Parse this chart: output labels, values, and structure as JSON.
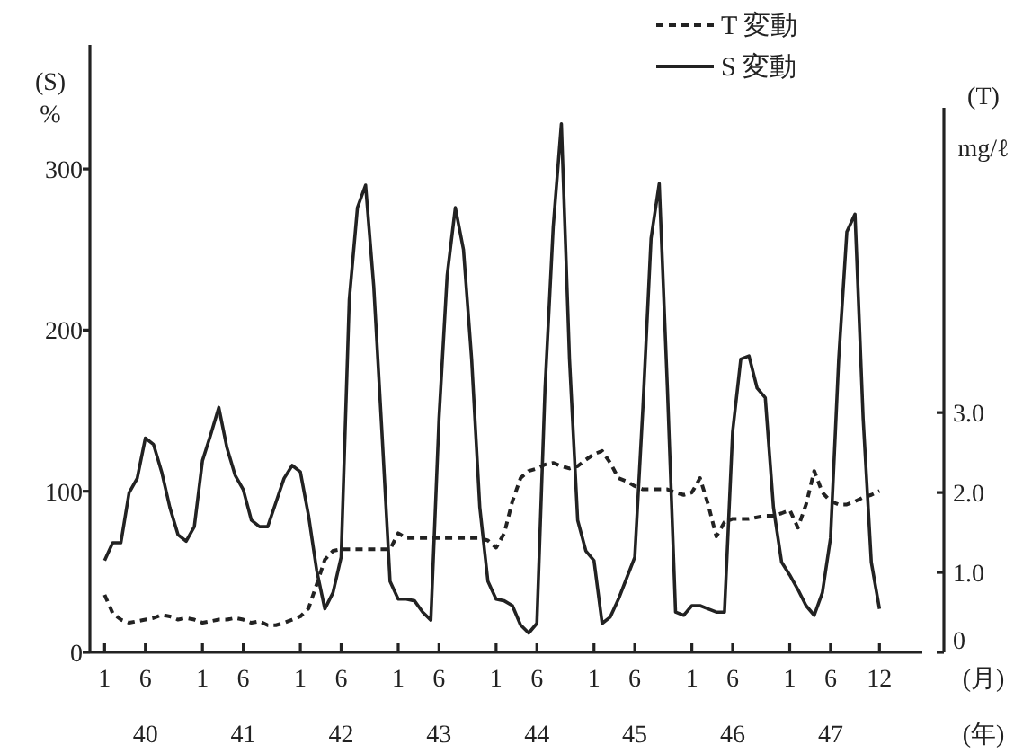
{
  "chart_data": {
    "type": "line",
    "xlabel": "(月)\n(年)",
    "ylabel": "(S)\n%",
    "y2label": "(T)\nmg/ℓ",
    "legend": "top right",
    "categories": [
      "1",
      null,
      null,
      null,
      null,
      "6\n40",
      null,
      null,
      null,
      null,
      null,
      null,
      "1",
      null,
      null,
      null,
      null,
      "6\n41",
      null,
      null,
      null,
      null,
      null,
      null,
      "1",
      null,
      null,
      null,
      null,
      "6\n42",
      null,
      null,
      null,
      null,
      null,
      null,
      "1",
      null,
      null,
      null,
      null,
      "6\n43",
      null,
      null,
      null,
      null,
      null,
      null,
      "1",
      null,
      null,
      null,
      null,
      "6\n44",
      null,
      null,
      null,
      null,
      null,
      null,
      "1",
      null,
      null,
      null,
      null,
      "6\n45",
      null,
      null,
      null,
      null,
      null,
      null,
      "1",
      null,
      null,
      null,
      null,
      "6\n46",
      null,
      null,
      null,
      null,
      null,
      null,
      "1",
      null,
      null,
      null,
      null,
      "6\n47",
      null,
      null,
      null,
      null,
      null,
      "12"
    ],
    "ylim": [
      0,
      377
    ],
    "yticks": [
      0,
      100,
      200,
      300
    ],
    "y2lim": [
      0,
      7.6
    ],
    "y2ticks": [
      0,
      {
        "value": 1,
        "label": "1.0"
      },
      {
        "value": 2,
        "label": "2.0"
      },
      {
        "value": 3,
        "label": "3.0"
      }
    ],
    "series": [
      {
        "name": "T 変動",
        "color": "#222222",
        "axis": "y2",
        "line_style": "dashed",
        "values": [
          0.72,
          0.49,
          0.41,
          0.37,
          0.39,
          0.41,
          0.43,
          0.47,
          0.45,
          0.41,
          0.43,
          0.41,
          0.37,
          0.39,
          0.41,
          0.41,
          0.43,
          0.41,
          0.37,
          0.39,
          0.34,
          0.34,
          0.37,
          0.41,
          0.45,
          0.55,
          0.85,
          1.16,
          1.27,
          1.29,
          1.29,
          1.29,
          1.29,
          1.29,
          1.29,
          1.29,
          1.49,
          1.43,
          1.43,
          1.43,
          1.43,
          1.43,
          1.43,
          1.43,
          1.43,
          1.43,
          1.43,
          1.4,
          1.31,
          1.49,
          1.89,
          2.18,
          2.27,
          2.3,
          2.35,
          2.37,
          2.33,
          2.3,
          2.33,
          2.41,
          2.48,
          2.52,
          2.37,
          2.18,
          2.14,
          2.08,
          2.04,
          2.04,
          2.04,
          2.04,
          2.0,
          1.97,
          2.0,
          2.18,
          1.85,
          1.45,
          1.63,
          1.67,
          1.67,
          1.67,
          1.69,
          1.71,
          1.71,
          1.74,
          1.78,
          1.56,
          1.85,
          2.27,
          2.0,
          1.89,
          1.85,
          1.85,
          1.89,
          1.94,
          1.97,
          2.02
        ]
      },
      {
        "name": "S 変動",
        "color": "#222222",
        "line_style": "solid",
        "values": [
          57,
          68,
          68,
          99,
          108,
          133,
          129,
          112,
          90,
          73,
          69,
          78,
          119,
          135,
          152,
          127,
          110,
          101,
          82,
          78,
          78,
          93,
          108,
          116,
          112,
          85,
          51,
          27,
          37,
          59,
          219,
          276,
          290,
          227,
          137,
          44,
          33,
          33,
          32,
          25,
          20,
          145,
          234,
          276,
          250,
          182,
          90,
          44,
          33,
          32,
          29,
          17,
          12,
          18,
          164,
          264,
          328,
          182,
          82,
          63,
          57,
          18,
          22,
          33,
          46,
          59,
          152,
          257,
          291,
          164,
          25,
          23,
          29,
          29,
          27,
          25,
          25,
          137,
          182,
          184,
          164,
          158,
          90,
          56,
          48,
          39,
          29,
          23,
          37,
          71,
          182,
          261,
          272,
          145,
          56,
          27
        ]
      }
    ]
  }
}
